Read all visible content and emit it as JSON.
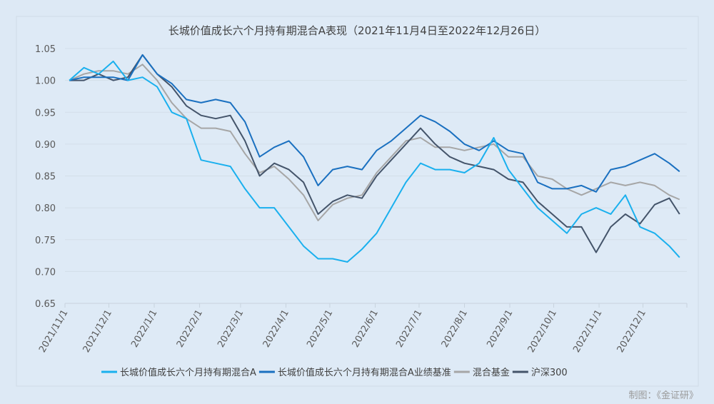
{
  "chart_data": {
    "type": "line",
    "title": "长城价值成长六个月持有期混合A表现（2021年11月4日至2022年12月26日）",
    "xlabel": "",
    "ylabel": "",
    "ylim": [
      0.65,
      1.05
    ],
    "yticks": [
      "0.65",
      "0.70",
      "0.75",
      "0.80",
      "0.85",
      "0.90",
      "0.95",
      "1.00",
      "1.05"
    ],
    "xticks": [
      "2021/11/1",
      "2021/12/1",
      "2022/1/1",
      "2022/2/1",
      "2022/3/1",
      "2022/4/1",
      "2022/5/1",
      "2022/6/1",
      "2022/7/1",
      "2022/8/1",
      "2022/9/1",
      "2022/10/1",
      "2022/11/1",
      "2022/12/1"
    ],
    "grid": true,
    "legend_position": "bottom",
    "x": [
      "2021-11-04",
      "2021-11-14",
      "2021-11-24",
      "2021-12-04",
      "2021-12-14",
      "2021-12-24",
      "2022-01-03",
      "2022-01-13",
      "2022-01-23",
      "2022-02-02",
      "2022-02-12",
      "2022-02-22",
      "2022-03-04",
      "2022-03-14",
      "2022-03-24",
      "2022-04-03",
      "2022-04-13",
      "2022-04-23",
      "2022-05-03",
      "2022-05-13",
      "2022-05-23",
      "2022-06-02",
      "2022-06-12",
      "2022-06-22",
      "2022-07-02",
      "2022-07-12",
      "2022-07-22",
      "2022-08-01",
      "2022-08-11",
      "2022-08-21",
      "2022-08-31",
      "2022-09-10",
      "2022-09-20",
      "2022-09-30",
      "2022-10-10",
      "2022-10-20",
      "2022-10-30",
      "2022-11-09",
      "2022-11-19",
      "2022-11-29",
      "2022-12-09",
      "2022-12-19",
      "2022-12-26"
    ],
    "series": [
      {
        "name": "长城价值成长六个月持有期混合A",
        "color": "#1ab0ee",
        "values": [
          1.0,
          1.02,
          1.01,
          1.03,
          1.0,
          1.005,
          0.99,
          0.95,
          0.94,
          0.875,
          0.87,
          0.865,
          0.83,
          0.8,
          0.8,
          0.77,
          0.74,
          0.72,
          0.72,
          0.715,
          0.735,
          0.76,
          0.8,
          0.84,
          0.87,
          0.86,
          0.86,
          0.855,
          0.87,
          0.91,
          0.86,
          0.83,
          0.8,
          0.78,
          0.76,
          0.79,
          0.8,
          0.79,
          0.82,
          0.77,
          0.76,
          0.74,
          0.722
        ]
      },
      {
        "name": "长城价值成长六个月持有期混合A业绩基准",
        "color": "#1a70c0",
        "values": [
          1.0,
          1.005,
          1.005,
          1.005,
          1.0,
          1.04,
          1.01,
          0.995,
          0.97,
          0.965,
          0.97,
          0.965,
          0.935,
          0.88,
          0.895,
          0.905,
          0.88,
          0.835,
          0.86,
          0.865,
          0.86,
          0.89,
          0.905,
          0.925,
          0.945,
          0.935,
          0.92,
          0.9,
          0.89,
          0.905,
          0.89,
          0.885,
          0.84,
          0.83,
          0.83,
          0.835,
          0.825,
          0.86,
          0.865,
          0.875,
          0.885,
          0.87,
          0.857
        ]
      },
      {
        "name": "混合基金",
        "color": "#a6a6a6",
        "values": [
          1.0,
          1.01,
          1.015,
          1.015,
          1.01,
          1.025,
          1.0,
          0.965,
          0.94,
          0.925,
          0.925,
          0.92,
          0.885,
          0.855,
          0.865,
          0.845,
          0.82,
          0.78,
          0.805,
          0.815,
          0.82,
          0.855,
          0.88,
          0.905,
          0.91,
          0.895,
          0.895,
          0.89,
          0.895,
          0.9,
          0.88,
          0.88,
          0.85,
          0.845,
          0.83,
          0.82,
          0.83,
          0.84,
          0.835,
          0.84,
          0.835,
          0.82,
          0.813
        ]
      },
      {
        "name": "沪深300",
        "color": "#44546a",
        "values": [
          1.0,
          1.0,
          1.01,
          1.0,
          1.005,
          1.04,
          1.01,
          0.99,
          0.96,
          0.945,
          0.94,
          0.945,
          0.905,
          0.85,
          0.87,
          0.86,
          0.84,
          0.79,
          0.81,
          0.82,
          0.815,
          0.85,
          0.875,
          0.9,
          0.925,
          0.9,
          0.88,
          0.87,
          0.865,
          0.86,
          0.845,
          0.84,
          0.81,
          0.79,
          0.77,
          0.77,
          0.73,
          0.77,
          0.79,
          0.775,
          0.805,
          0.815,
          0.79
        ]
      }
    ]
  },
  "footer": {
    "credit": "制图：《金证研》"
  }
}
